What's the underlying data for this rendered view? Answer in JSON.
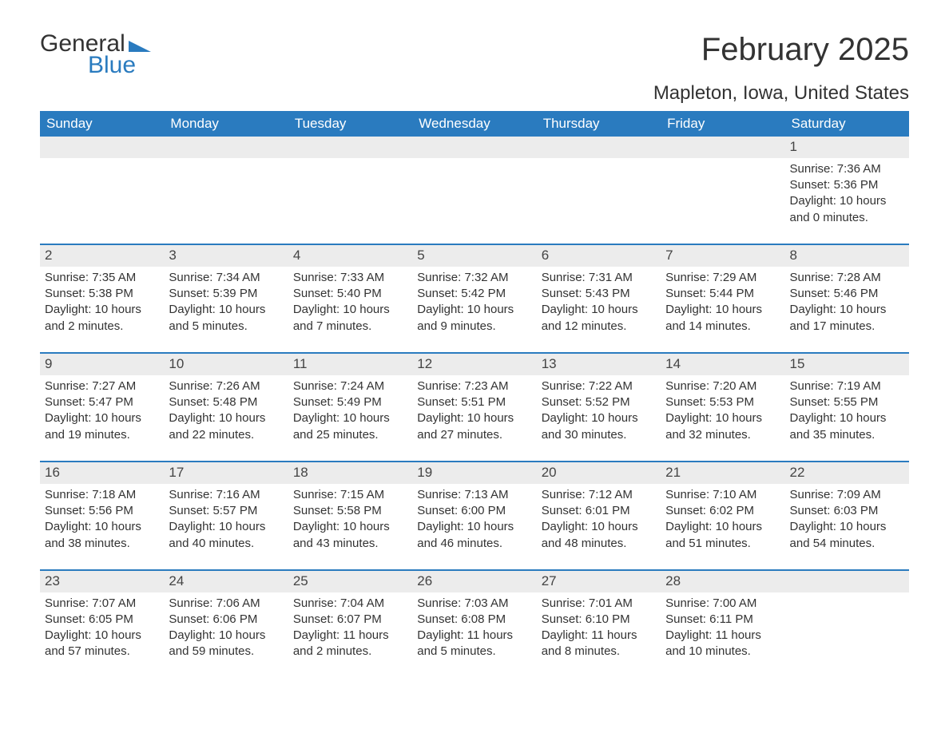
{
  "logo": {
    "line1": "General",
    "line2": "Blue"
  },
  "title": "February 2025",
  "location": "Mapleton, Iowa, United States",
  "colors": {
    "header_bg": "#2a7bbf",
    "header_fg": "#ffffff",
    "daynum_bg": "#ececec",
    "row_border": "#2a7bbf",
    "text": "#333333",
    "page_bg": "#ffffff"
  },
  "typography": {
    "title_fontsize": 40,
    "location_fontsize": 24,
    "weekday_fontsize": 17,
    "body_fontsize": 15
  },
  "weekdays": [
    "Sunday",
    "Monday",
    "Tuesday",
    "Wednesday",
    "Thursday",
    "Friday",
    "Saturday"
  ],
  "weeks": [
    [
      null,
      null,
      null,
      null,
      null,
      null,
      {
        "day": "1",
        "sunrise": "Sunrise: 7:36 AM",
        "sunset": "Sunset: 5:36 PM",
        "daylight": "Daylight: 10 hours and 0 minutes."
      }
    ],
    [
      {
        "day": "2",
        "sunrise": "Sunrise: 7:35 AM",
        "sunset": "Sunset: 5:38 PM",
        "daylight": "Daylight: 10 hours and 2 minutes."
      },
      {
        "day": "3",
        "sunrise": "Sunrise: 7:34 AM",
        "sunset": "Sunset: 5:39 PM",
        "daylight": "Daylight: 10 hours and 5 minutes."
      },
      {
        "day": "4",
        "sunrise": "Sunrise: 7:33 AM",
        "sunset": "Sunset: 5:40 PM",
        "daylight": "Daylight: 10 hours and 7 minutes."
      },
      {
        "day": "5",
        "sunrise": "Sunrise: 7:32 AM",
        "sunset": "Sunset: 5:42 PM",
        "daylight": "Daylight: 10 hours and 9 minutes."
      },
      {
        "day": "6",
        "sunrise": "Sunrise: 7:31 AM",
        "sunset": "Sunset: 5:43 PM",
        "daylight": "Daylight: 10 hours and 12 minutes."
      },
      {
        "day": "7",
        "sunrise": "Sunrise: 7:29 AM",
        "sunset": "Sunset: 5:44 PM",
        "daylight": "Daylight: 10 hours and 14 minutes."
      },
      {
        "day": "8",
        "sunrise": "Sunrise: 7:28 AM",
        "sunset": "Sunset: 5:46 PM",
        "daylight": "Daylight: 10 hours and 17 minutes."
      }
    ],
    [
      {
        "day": "9",
        "sunrise": "Sunrise: 7:27 AM",
        "sunset": "Sunset: 5:47 PM",
        "daylight": "Daylight: 10 hours and 19 minutes."
      },
      {
        "day": "10",
        "sunrise": "Sunrise: 7:26 AM",
        "sunset": "Sunset: 5:48 PM",
        "daylight": "Daylight: 10 hours and 22 minutes."
      },
      {
        "day": "11",
        "sunrise": "Sunrise: 7:24 AM",
        "sunset": "Sunset: 5:49 PM",
        "daylight": "Daylight: 10 hours and 25 minutes."
      },
      {
        "day": "12",
        "sunrise": "Sunrise: 7:23 AM",
        "sunset": "Sunset: 5:51 PM",
        "daylight": "Daylight: 10 hours and 27 minutes."
      },
      {
        "day": "13",
        "sunrise": "Sunrise: 7:22 AM",
        "sunset": "Sunset: 5:52 PM",
        "daylight": "Daylight: 10 hours and 30 minutes."
      },
      {
        "day": "14",
        "sunrise": "Sunrise: 7:20 AM",
        "sunset": "Sunset: 5:53 PM",
        "daylight": "Daylight: 10 hours and 32 minutes."
      },
      {
        "day": "15",
        "sunrise": "Sunrise: 7:19 AM",
        "sunset": "Sunset: 5:55 PM",
        "daylight": "Daylight: 10 hours and 35 minutes."
      }
    ],
    [
      {
        "day": "16",
        "sunrise": "Sunrise: 7:18 AM",
        "sunset": "Sunset: 5:56 PM",
        "daylight": "Daylight: 10 hours and 38 minutes."
      },
      {
        "day": "17",
        "sunrise": "Sunrise: 7:16 AM",
        "sunset": "Sunset: 5:57 PM",
        "daylight": "Daylight: 10 hours and 40 minutes."
      },
      {
        "day": "18",
        "sunrise": "Sunrise: 7:15 AM",
        "sunset": "Sunset: 5:58 PM",
        "daylight": "Daylight: 10 hours and 43 minutes."
      },
      {
        "day": "19",
        "sunrise": "Sunrise: 7:13 AM",
        "sunset": "Sunset: 6:00 PM",
        "daylight": "Daylight: 10 hours and 46 minutes."
      },
      {
        "day": "20",
        "sunrise": "Sunrise: 7:12 AM",
        "sunset": "Sunset: 6:01 PM",
        "daylight": "Daylight: 10 hours and 48 minutes."
      },
      {
        "day": "21",
        "sunrise": "Sunrise: 7:10 AM",
        "sunset": "Sunset: 6:02 PM",
        "daylight": "Daylight: 10 hours and 51 minutes."
      },
      {
        "day": "22",
        "sunrise": "Sunrise: 7:09 AM",
        "sunset": "Sunset: 6:03 PM",
        "daylight": "Daylight: 10 hours and 54 minutes."
      }
    ],
    [
      {
        "day": "23",
        "sunrise": "Sunrise: 7:07 AM",
        "sunset": "Sunset: 6:05 PM",
        "daylight": "Daylight: 10 hours and 57 minutes."
      },
      {
        "day": "24",
        "sunrise": "Sunrise: 7:06 AM",
        "sunset": "Sunset: 6:06 PM",
        "daylight": "Daylight: 10 hours and 59 minutes."
      },
      {
        "day": "25",
        "sunrise": "Sunrise: 7:04 AM",
        "sunset": "Sunset: 6:07 PM",
        "daylight": "Daylight: 11 hours and 2 minutes."
      },
      {
        "day": "26",
        "sunrise": "Sunrise: 7:03 AM",
        "sunset": "Sunset: 6:08 PM",
        "daylight": "Daylight: 11 hours and 5 minutes."
      },
      {
        "day": "27",
        "sunrise": "Sunrise: 7:01 AM",
        "sunset": "Sunset: 6:10 PM",
        "daylight": "Daylight: 11 hours and 8 minutes."
      },
      {
        "day": "28",
        "sunrise": "Sunrise: 7:00 AM",
        "sunset": "Sunset: 6:11 PM",
        "daylight": "Daylight: 11 hours and 10 minutes."
      },
      null
    ]
  ]
}
